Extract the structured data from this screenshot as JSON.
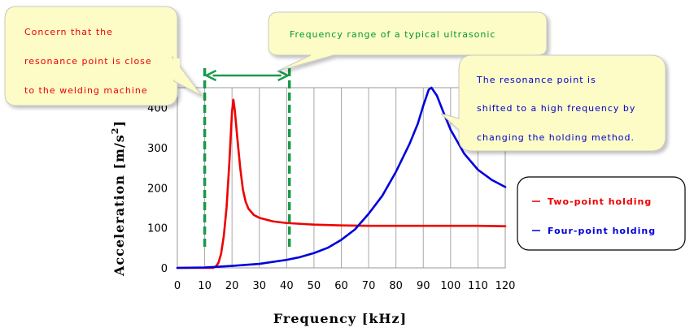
{
  "chart_data": {
    "type": "line",
    "xlabel": "Frequency [kHz]",
    "ylabel": "Acceleration [m/s²]",
    "ylabel_base": "Acceleration [m/s",
    "ylabel_sup": "2",
    "ylabel_end": "]",
    "xlim": [
      0,
      120
    ],
    "ylim": [
      0,
      450
    ],
    "xticks": [
      0,
      10,
      20,
      30,
      40,
      50,
      60,
      70,
      80,
      90,
      100,
      110,
      120
    ],
    "yticks": [
      0,
      100,
      200,
      300,
      400
    ],
    "grid": "vertical",
    "legend_position": "right",
    "series": [
      {
        "name": "Two-point holding",
        "color": "#ee0000",
        "points": [
          [
            0,
            0
          ],
          [
            13,
            0
          ],
          [
            14,
            3
          ],
          [
            15,
            12
          ],
          [
            16,
            35
          ],
          [
            17,
            80
          ],
          [
            18,
            150
          ],
          [
            19,
            260
          ],
          [
            20,
            390
          ],
          [
            20.5,
            420
          ],
          [
            21,
            395
          ],
          [
            22,
            320
          ],
          [
            23,
            250
          ],
          [
            24,
            195
          ],
          [
            25,
            165
          ],
          [
            26,
            148
          ],
          [
            28,
            132
          ],
          [
            30,
            125
          ],
          [
            35,
            116
          ],
          [
            40,
            112
          ],
          [
            50,
            108
          ],
          [
            60,
            106
          ],
          [
            70,
            105
          ],
          [
            80,
            105
          ],
          [
            90,
            105
          ],
          [
            100,
            105
          ],
          [
            110,
            105
          ],
          [
            120,
            104
          ]
        ]
      },
      {
        "name": "Four-point holding",
        "color": "#0000dd",
        "points": [
          [
            0,
            0
          ],
          [
            10,
            1
          ],
          [
            20,
            5
          ],
          [
            30,
            10
          ],
          [
            40,
            20
          ],
          [
            45,
            27
          ],
          [
            50,
            37
          ],
          [
            55,
            50
          ],
          [
            60,
            70
          ],
          [
            65,
            96
          ],
          [
            70,
            135
          ],
          [
            75,
            180
          ],
          [
            80,
            240
          ],
          [
            85,
            310
          ],
          [
            88,
            360
          ],
          [
            90,
            405
          ],
          [
            92,
            445
          ],
          [
            93,
            450
          ],
          [
            95,
            430
          ],
          [
            97,
            395
          ],
          [
            100,
            345
          ],
          [
            105,
            285
          ],
          [
            110,
            245
          ],
          [
            115,
            220
          ],
          [
            120,
            202
          ]
        ]
      }
    ],
    "range_markers": [
      10,
      41
    ],
    "annotations": [
      {
        "lines": [
          "Concern that the",
          "resonance point is close",
          "to the welding machine"
        ],
        "color": "#ee0000"
      },
      {
        "lines": [
          "Frequency range of a typical ultrasonic"
        ],
        "color": "#009a2e"
      },
      {
        "lines": [
          "The resonance point is",
          "shifted to a high frequency by",
          "changing the holding method."
        ],
        "color": "#0000cc"
      }
    ]
  },
  "colors": {
    "callout_fill": "#fdfbc6",
    "callout_stroke": "#c8c8c8",
    "marker_green": "#1a9a4a"
  }
}
